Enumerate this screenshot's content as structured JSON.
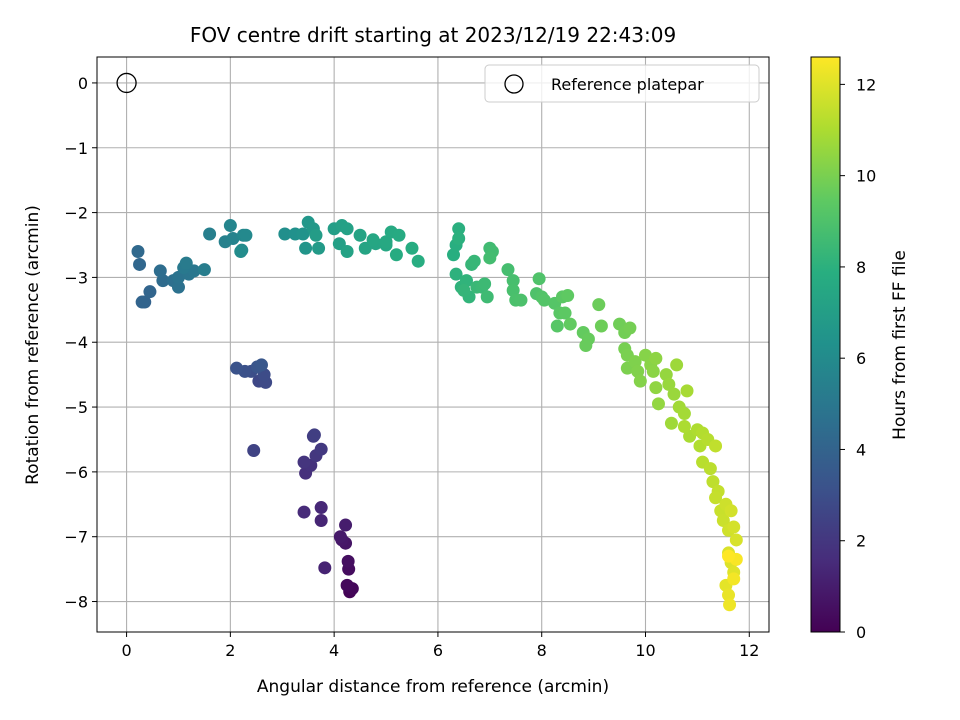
{
  "chart_data": {
    "type": "scatter",
    "title": "FOV centre drift starting at 2023/12/19 22:43:09",
    "xlabel": "Angular distance from reference (arcmin)",
    "ylabel": "Rotation from reference (arcmin)",
    "xlim": [
      -0.57,
      12.38
    ],
    "ylim": [
      -8.47,
      0.4
    ],
    "xticks": [
      0,
      2,
      4,
      6,
      8,
      10,
      12
    ],
    "xtick_labels": [
      "0",
      "2",
      "4",
      "6",
      "8",
      "10",
      "12"
    ],
    "yticks": [
      0,
      -1,
      -2,
      -3,
      -4,
      -5,
      -6,
      -7,
      -8
    ],
    "ytick_labels": [
      "0",
      "−1",
      "−2",
      "−3",
      "−4",
      "−5",
      "−6",
      "−7",
      "−8"
    ],
    "grid": true,
    "colormap": "viridis",
    "colorbar": {
      "label": "Hours from first FF file",
      "range": [
        0,
        12.6
      ],
      "ticks": [
        0,
        2,
        4,
        6,
        8,
        10,
        12
      ],
      "tick_labels": [
        "0",
        "2",
        "4",
        "6",
        "8",
        "10",
        "12"
      ]
    },
    "legend": {
      "position": "top-right",
      "entries": [
        "Reference platepar"
      ]
    },
    "reference": {
      "x": 0,
      "y": 0,
      "label": "Reference platepar"
    },
    "series": [
      {
        "points": [
          [
            4.3,
            -7.85,
            0.1
          ],
          [
            4.35,
            -7.8,
            0.2
          ],
          [
            4.25,
            -7.75,
            0.3
          ],
          [
            4.28,
            -7.5,
            0.4
          ],
          [
            4.27,
            -7.38,
            0.5
          ],
          [
            4.22,
            -7.1,
            0.7
          ],
          [
            4.15,
            -7.05,
            0.8
          ],
          [
            4.12,
            -7.0,
            0.9
          ],
          [
            4.22,
            -6.82,
            1.0
          ],
          [
            3.82,
            -7.48,
            1.2
          ],
          [
            3.75,
            -6.75,
            1.3
          ],
          [
            3.75,
            -6.55,
            1.4
          ],
          [
            3.42,
            -6.62,
            1.5
          ],
          [
            3.45,
            -6.02,
            1.7
          ],
          [
            3.55,
            -5.9,
            1.8
          ],
          [
            3.42,
            -5.85,
            1.9
          ],
          [
            3.65,
            -5.75,
            2.0
          ],
          [
            3.75,
            -5.65,
            2.1
          ],
          [
            3.6,
            -5.45,
            2.2
          ],
          [
            3.62,
            -5.43,
            2.3
          ],
          [
            2.45,
            -5.67,
            2.5
          ],
          [
            2.55,
            -4.6,
            2.7
          ],
          [
            2.68,
            -4.62,
            2.8
          ],
          [
            2.65,
            -4.5,
            2.9
          ],
          [
            2.4,
            -4.45,
            3.0
          ],
          [
            2.28,
            -4.45,
            3.1
          ],
          [
            2.12,
            -4.4,
            3.2
          ],
          [
            2.52,
            -4.38,
            3.3
          ],
          [
            2.6,
            -4.35,
            3.4
          ],
          [
            0.35,
            -3.38,
            4.0
          ],
          [
            0.3,
            -3.38,
            4.05
          ],
          [
            0.45,
            -3.22,
            4.1
          ],
          [
            0.25,
            -2.8,
            4.2
          ],
          [
            0.22,
            -2.6,
            4.3
          ],
          [
            0.7,
            -3.05,
            4.4
          ],
          [
            0.65,
            -2.9,
            4.5
          ],
          [
            0.9,
            -3.05,
            4.6
          ],
          [
            1.0,
            -3.15,
            4.7
          ],
          [
            1.0,
            -3.0,
            4.8
          ],
          [
            1.2,
            -2.95,
            4.9
          ],
          [
            1.3,
            -2.9,
            5.0
          ],
          [
            1.1,
            -2.85,
            5.1
          ],
          [
            1.15,
            -2.78,
            5.2
          ],
          [
            1.5,
            -2.88,
            5.3
          ],
          [
            1.6,
            -2.33,
            5.4
          ],
          [
            1.9,
            -2.45,
            5.5
          ],
          [
            2.05,
            -2.4,
            5.6
          ],
          [
            2.0,
            -2.2,
            5.7
          ],
          [
            2.25,
            -2.35,
            5.8
          ],
          [
            2.3,
            -2.35,
            5.9
          ],
          [
            2.22,
            -2.58,
            6.0
          ],
          [
            2.2,
            -2.6,
            6.05
          ],
          [
            3.05,
            -2.33,
            6.2
          ],
          [
            3.25,
            -2.33,
            6.3
          ],
          [
            3.4,
            -2.33,
            6.4
          ],
          [
            3.45,
            -2.55,
            6.5
          ],
          [
            3.5,
            -2.15,
            6.6
          ],
          [
            3.6,
            -2.25,
            6.7
          ],
          [
            3.7,
            -2.55,
            6.8
          ],
          [
            3.65,
            -2.35,
            6.9
          ],
          [
            4.0,
            -2.25,
            7.0
          ],
          [
            4.1,
            -2.48,
            7.05
          ],
          [
            4.15,
            -2.2,
            7.1
          ],
          [
            4.25,
            -2.25,
            7.15
          ],
          [
            4.25,
            -2.6,
            7.2
          ],
          [
            4.5,
            -2.35,
            7.3
          ],
          [
            4.6,
            -2.55,
            7.35
          ],
          [
            4.8,
            -2.48,
            7.4
          ],
          [
            4.75,
            -2.42,
            7.45
          ],
          [
            5.0,
            -2.5,
            7.5
          ],
          [
            5.0,
            -2.45,
            7.55
          ],
          [
            5.1,
            -2.3,
            7.6
          ],
          [
            5.25,
            -2.35,
            7.65
          ],
          [
            5.2,
            -2.65,
            7.7
          ],
          [
            5.5,
            -2.55,
            7.75
          ],
          [
            5.62,
            -2.75,
            7.8
          ],
          [
            6.3,
            -2.65,
            7.85
          ],
          [
            6.35,
            -2.5,
            7.9
          ],
          [
            6.4,
            -2.25,
            7.95
          ],
          [
            6.4,
            -2.4,
            8.0
          ],
          [
            6.35,
            -2.95,
            8.05
          ],
          [
            6.45,
            -3.15,
            8.1
          ],
          [
            6.55,
            -3.05,
            8.15
          ],
          [
            6.6,
            -3.3,
            8.2
          ],
          [
            6.5,
            -3.2,
            8.25
          ],
          [
            6.65,
            -2.8,
            8.3
          ],
          [
            6.7,
            -2.75,
            8.35
          ],
          [
            6.75,
            -3.15,
            8.4
          ],
          [
            6.85,
            -3.15,
            8.45
          ],
          [
            6.9,
            -3.1,
            8.5
          ],
          [
            6.95,
            -3.3,
            8.55
          ],
          [
            7.0,
            -2.55,
            8.6
          ],
          [
            7.05,
            -2.6,
            8.65
          ],
          [
            7.0,
            -2.7,
            8.7
          ],
          [
            7.35,
            -2.88,
            8.75
          ],
          [
            7.45,
            -3.05,
            8.8
          ],
          [
            7.45,
            -3.2,
            8.85
          ],
          [
            7.5,
            -3.35,
            8.9
          ],
          [
            7.6,
            -3.35,
            8.95
          ],
          [
            7.9,
            -3.25,
            9.0
          ],
          [
            7.95,
            -3.02,
            9.05
          ],
          [
            8.0,
            -3.3,
            9.1
          ],
          [
            8.05,
            -3.35,
            9.15
          ],
          [
            8.25,
            -3.4,
            9.2
          ],
          [
            8.3,
            -3.75,
            9.25
          ],
          [
            8.35,
            -3.55,
            9.3
          ],
          [
            8.4,
            -3.3,
            9.35
          ],
          [
            8.45,
            -3.55,
            9.4
          ],
          [
            8.5,
            -3.28,
            9.45
          ],
          [
            8.55,
            -3.72,
            9.5
          ],
          [
            8.8,
            -3.85,
            9.55
          ],
          [
            8.9,
            -3.95,
            9.6
          ],
          [
            8.85,
            -4.05,
            9.65
          ],
          [
            9.1,
            -3.42,
            9.7
          ],
          [
            9.15,
            -3.75,
            9.75
          ],
          [
            9.5,
            -3.72,
            9.8
          ],
          [
            9.6,
            -3.85,
            9.85
          ],
          [
            9.7,
            -3.78,
            9.9
          ],
          [
            9.6,
            -4.1,
            9.95
          ],
          [
            9.65,
            -4.2,
            10.0
          ],
          [
            9.65,
            -4.4,
            10.05
          ],
          [
            9.8,
            -4.3,
            10.1
          ],
          [
            9.85,
            -4.45,
            10.15
          ],
          [
            9.9,
            -4.6,
            10.2
          ],
          [
            10.0,
            -4.2,
            10.25
          ],
          [
            10.1,
            -4.35,
            10.3
          ],
          [
            10.15,
            -4.45,
            10.35
          ],
          [
            10.2,
            -4.25,
            10.4
          ],
          [
            10.2,
            -4.7,
            10.45
          ],
          [
            10.25,
            -4.95,
            10.5
          ],
          [
            10.4,
            -4.5,
            10.55
          ],
          [
            10.45,
            -4.65,
            10.6
          ],
          [
            10.55,
            -4.8,
            10.65
          ],
          [
            10.6,
            -4.35,
            10.7
          ],
          [
            10.5,
            -5.25,
            10.75
          ],
          [
            10.65,
            -5.0,
            10.8
          ],
          [
            10.75,
            -5.1,
            10.85
          ],
          [
            10.8,
            -4.75,
            10.9
          ],
          [
            10.85,
            -5.45,
            10.95
          ],
          [
            10.75,
            -5.3,
            11.0
          ],
          [
            11.0,
            -5.35,
            11.05
          ],
          [
            11.05,
            -5.6,
            11.1
          ],
          [
            11.1,
            -5.4,
            11.15
          ],
          [
            11.2,
            -5.5,
            11.2
          ],
          [
            11.1,
            -5.85,
            11.25
          ],
          [
            11.25,
            -5.95,
            11.3
          ],
          [
            11.3,
            -6.15,
            11.35
          ],
          [
            11.35,
            -5.6,
            11.4
          ],
          [
            11.4,
            -6.3,
            11.45
          ],
          [
            11.35,
            -6.4,
            11.5
          ],
          [
            11.45,
            -6.6,
            11.55
          ],
          [
            11.5,
            -6.75,
            11.6
          ],
          [
            11.55,
            -6.5,
            11.65
          ],
          [
            11.6,
            -6.9,
            11.7
          ],
          [
            11.65,
            -6.6,
            11.75
          ],
          [
            11.7,
            -6.85,
            11.8
          ],
          [
            11.75,
            -7.05,
            11.85
          ],
          [
            11.6,
            -7.25,
            11.9
          ],
          [
            11.65,
            -7.4,
            11.95
          ],
          [
            11.7,
            -7.55,
            12.0
          ],
          [
            11.55,
            -7.75,
            12.1
          ],
          [
            11.6,
            -7.9,
            12.2
          ],
          [
            11.62,
            -8.05,
            12.3
          ],
          [
            11.7,
            -7.65,
            12.4
          ],
          [
            11.75,
            -7.35,
            12.5
          ],
          [
            11.6,
            -7.3,
            12.6
          ]
        ]
      }
    ]
  }
}
